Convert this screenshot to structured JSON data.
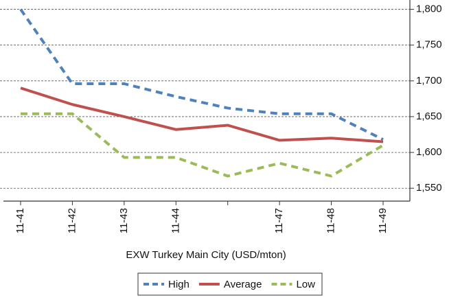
{
  "chart_data": {
    "type": "line",
    "x_label": "EXW Turkey Main City (USD/mton)",
    "categories": [
      "11-41",
      "11-42",
      "11-43",
      "11-44",
      null,
      "11-47",
      "11-48",
      "11-49"
    ],
    "series": [
      {
        "name": "High",
        "color": "#4f81bd",
        "style": "dashed",
        "values": [
          1800,
          1696,
          1696,
          1678,
          1662,
          1654,
          1654,
          1618
        ]
      },
      {
        "name": "Average",
        "color": "#c0504d",
        "style": "solid",
        "values": [
          1690,
          1667,
          1650,
          1632,
          1638,
          1617,
          1620,
          1615
        ]
      },
      {
        "name": "Low",
        "color": "#9bbb59",
        "style": "dashed",
        "values": [
          1654,
          1654,
          1593,
          1593,
          1567,
          1585,
          1567,
          1610
        ]
      }
    ],
    "ylim": [
      1532,
      1813
    ],
    "yticks": [
      {
        "value": 1550,
        "label": "1,550"
      },
      {
        "value": 1600,
        "label": "1,600"
      },
      {
        "value": 1650,
        "label": "1,650"
      },
      {
        "value": 1700,
        "label": "1,700"
      },
      {
        "value": 1750,
        "label": "1,750"
      },
      {
        "value": 1800,
        "label": "1,800"
      }
    ],
    "grid": true,
    "y_axis_side": "right",
    "legend": "bottom"
  }
}
